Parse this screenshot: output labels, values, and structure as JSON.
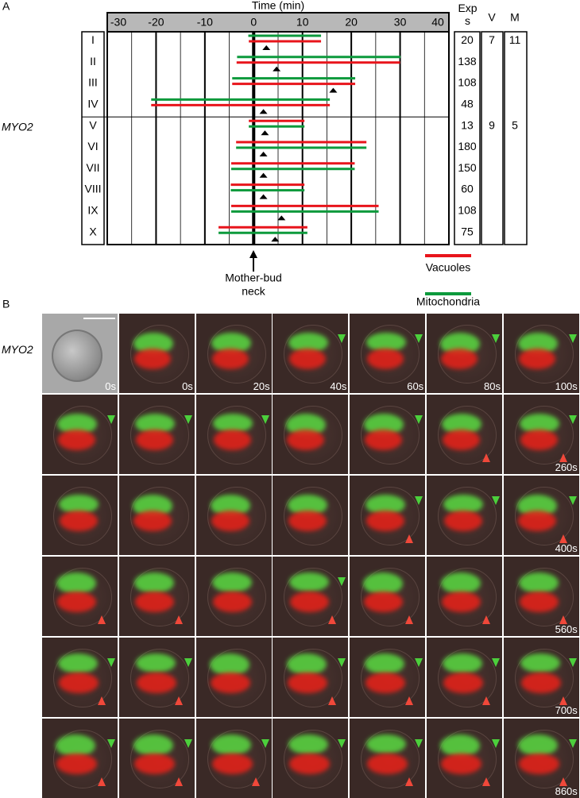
{
  "panel_labels": [
    "A",
    "B"
  ],
  "chart_data": {
    "type": "range",
    "title": "Time (min)",
    "xlim": [
      -30,
      40
    ],
    "xticks": [
      -30,
      -20,
      -10,
      0,
      10,
      20,
      30,
      40
    ],
    "minor_xticks": [
      -25,
      -15,
      -5,
      5,
      15,
      25,
      35
    ],
    "group_label": "MYO2",
    "rows": [
      "I",
      "II",
      "III",
      "IV",
      "V",
      "VI",
      "VII",
      "VIII",
      "IX",
      "X"
    ],
    "series": [
      {
        "name": "Vacuoles",
        "color": "#e8141b",
        "values": [
          [
            -1,
            13.8
          ],
          [
            -3.5,
            30
          ],
          [
            -4.4,
            20.8
          ],
          [
            -21,
            15.6
          ],
          [
            -1,
            10.4
          ],
          [
            -3.6,
            23.1
          ],
          [
            -4.6,
            20.7
          ],
          [
            -4.7,
            10.4
          ],
          [
            -4.6,
            25.6
          ],
          [
            -7.2,
            11
          ]
        ]
      },
      {
        "name": "Mitochondria",
        "color": "#0c9a3c",
        "values": [
          [
            -1.1,
            13.8
          ],
          [
            -3.4,
            30.1
          ],
          [
            -4.4,
            20.8
          ],
          [
            -21,
            15.6
          ],
          [
            -1,
            10.4
          ],
          [
            -3.6,
            23.1
          ],
          [
            -4.6,
            20.7
          ],
          [
            -4.7,
            10.4
          ],
          [
            -4.6,
            25.6
          ],
          [
            -7.2,
            11
          ]
        ]
      }
    ],
    "markers": [
      2.6,
      4.7,
      16.3,
      2,
      2.3,
      2,
      2,
      2,
      5.7,
      4.4
    ],
    "annotation": [
      "Mother-bud",
      "neck"
    ],
    "table_headers": [
      "Exps",
      "V",
      "M"
    ],
    "exps": [
      20,
      138,
      108,
      48,
      13,
      180,
      150,
      60,
      108,
      75
    ],
    "groups": [
      {
        "v": 7,
        "m": 11
      },
      {
        "v": 9,
        "m": 5
      }
    ]
  },
  "panel_b": {
    "label": "MYO2",
    "rows": [
      [
        "0s",
        "0s",
        "20s",
        "40s",
        "60s",
        "80s",
        "100s"
      ],
      [
        "260s"
      ],
      [
        "400s"
      ],
      [
        "560s"
      ],
      [
        "700s"
      ],
      [
        "860s"
      ]
    ]
  }
}
